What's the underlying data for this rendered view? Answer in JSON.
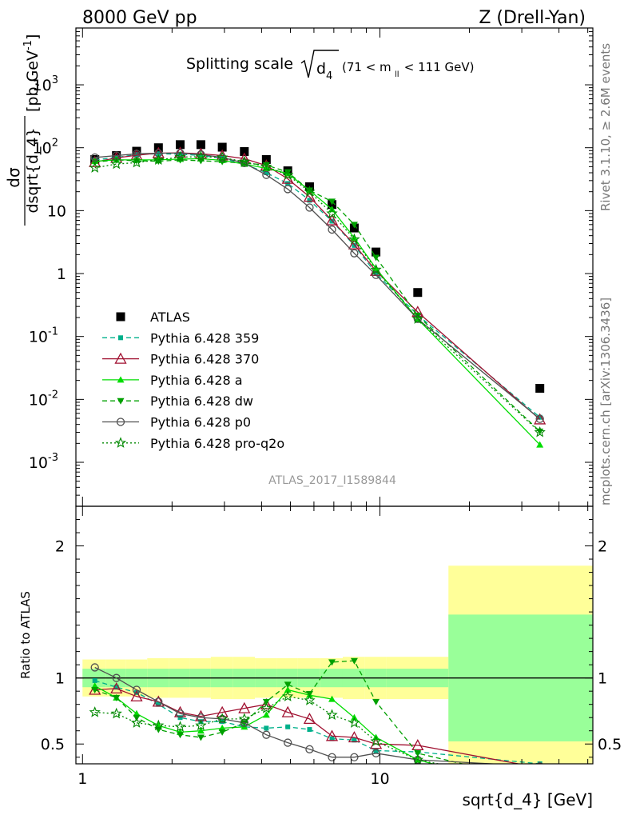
{
  "header": {
    "energy_label": "8000 GeV pp",
    "process_label": "Z (Drell-Yan)"
  },
  "side_labels": {
    "rivet": "Rivet 3.1.10, ≥ 2.6M events",
    "mcplots": "mcplots.cern.ch [arXiv:1306.3436]"
  },
  "analysis_id": "ATLAS_2017_I1589844",
  "chart_data": [
    {
      "type": "scatter",
      "panel": "main",
      "title_parts": {
        "prefix": "Splitting scale",
        "symbol": "d",
        "subscript": "4",
        "range_prefix": "(71 < m",
        "range_sub": "ll",
        "range_suffix": " < 111 GeV)"
      },
      "ylabel": "dσ / dsqrt{d_4} [pb,GeV⁻¹]",
      "ylabel_parts": {
        "num": "dσ",
        "den": "dsqrt{d_4}",
        "unit": "[pb,GeV",
        "unit_sup": "-1",
        "unit_end": "]"
      },
      "xscale": "log",
      "yscale": "log",
      "xlim": [
        0.95,
        52
      ],
      "ylim": [
        0.0002,
        8000
      ],
      "y_ticks": [
        {
          "value": 0.001,
          "base": "10",
          "exp": "-3"
        },
        {
          "value": 0.01,
          "base": "10",
          "exp": "-2"
        },
        {
          "value": 0.1,
          "base": "10",
          "exp": "-1"
        },
        {
          "value": 1,
          "base": "1",
          "exp": ""
        },
        {
          "value": 10,
          "base": "10",
          "exp": ""
        },
        {
          "value": 100,
          "base": "10",
          "exp": "2"
        },
        {
          "value": 1000,
          "base": "10",
          "exp": "3"
        }
      ],
      "legend_position": "middle-left",
      "x_bins": [
        [
          1.0,
          1.2
        ],
        [
          1.2,
          1.4
        ],
        [
          1.4,
          1.65
        ],
        [
          1.65,
          1.95
        ],
        [
          1.95,
          2.3
        ],
        [
          2.3,
          2.7
        ],
        [
          2.7,
          3.2
        ],
        [
          3.2,
          3.8
        ],
        [
          3.8,
          4.5
        ],
        [
          4.5,
          5.3
        ],
        [
          5.3,
          6.3
        ],
        [
          6.3,
          7.5
        ],
        [
          7.5,
          8.9
        ],
        [
          8.9,
          10.5
        ],
        [
          10.5,
          17.0
        ],
        [
          17.0,
          52.0
        ]
      ],
      "x": [
        1.1,
        1.3,
        1.52,
        1.8,
        2.13,
        2.5,
        2.95,
        3.5,
        4.15,
        4.9,
        5.8,
        6.9,
        8.2,
        9.7,
        13.4,
        34.5
      ],
      "series": [
        {
          "name": "ATLAS",
          "color": "#000000",
          "marker": "square",
          "line": "none",
          "values": [
            65,
            75,
            88,
            100,
            112,
            112,
            102,
            87,
            65,
            43,
            24,
            12.5,
            5.3,
            2.2,
            0.5,
            0.015
          ]
        },
        {
          "name": "Pythia 6.428 359",
          "color": "#00b08a",
          "marker": "small-square",
          "line": "dashed",
          "values": [
            64,
            70,
            78,
            80,
            79,
            75,
            68,
            55,
            40,
            27,
            14.6,
            6.8,
            2.8,
            1.0,
            0.22,
            0.0052
          ]
        },
        {
          "name": "Pythia 6.428 370",
          "color": "#a01030",
          "marker": "open-triangle",
          "line": "solid",
          "values": [
            59,
            69,
            76,
            82,
            83,
            80,
            75,
            67,
            52,
            32,
            16.6,
            7.0,
            2.9,
            1.1,
            0.245,
            0.0048
          ]
        },
        {
          "name": "Pythia 6.428 a",
          "color": "#00dd00",
          "marker": "triangle",
          "line": "solid",
          "values": [
            61,
            64,
            64,
            64,
            66,
            67,
            63,
            55,
            47,
            39,
            21,
            10.5,
            3.7,
            1.2,
            0.19,
            0.0019
          ]
        },
        {
          "name": "Pythia 6.428 dw",
          "color": "#00a000",
          "marker": "down-triangle",
          "line": "dashed",
          "values": [
            59,
            64,
            62,
            61,
            64,
            62,
            60,
            57,
            53,
            41,
            21,
            14.0,
            6.0,
            1.8,
            0.215,
            0.0031
          ]
        },
        {
          "name": "Pythia 6.428 p0",
          "color": "#505050",
          "marker": "open-circle",
          "line": "solid",
          "values": [
            70,
            75,
            80,
            82,
            82,
            78,
            70,
            57,
            37,
            22,
            11.2,
            5.0,
            2.1,
            0.95,
            0.19,
            0.0049
          ]
        },
        {
          "name": "Pythia 6.428 pro-q2o",
          "color": "#008800",
          "marker": "star",
          "line": "dotted",
          "values": [
            48,
            55,
            58,
            64,
            71,
            72,
            70,
            60,
            50,
            37,
            20,
            9.0,
            3.5,
            1.15,
            0.19,
            0.003
          ]
        }
      ]
    },
    {
      "type": "line",
      "panel": "ratio",
      "ylabel": "Ratio to ATLAS",
      "xlabel": "sqrt{d_4} [GeV]",
      "xscale": "log",
      "xlim": [
        0.95,
        52
      ],
      "ylim": [
        0.35,
        2.3
      ],
      "y_ticks": [
        0.5,
        1,
        2
      ],
      "x_ticks": [
        1,
        10
      ],
      "reference_line": 1,
      "stat_band_green": [
        0.07,
        0.07,
        0.07,
        0.07,
        0.07,
        0.07,
        0.07,
        0.07,
        0.07,
        0.07,
        0.07,
        0.07,
        0.07,
        0.07,
        0.07,
        0.48
      ],
      "total_band_yellow": [
        0.14,
        0.14,
        0.14,
        0.15,
        0.15,
        0.15,
        0.16,
        0.16,
        0.15,
        0.15,
        0.15,
        0.15,
        0.16,
        0.16,
        0.16,
        0.85
      ],
      "series": [
        {
          "name": "Pythia 6.428 359",
          "values": [
            0.98,
            0.93,
            0.89,
            0.8,
            0.7,
            0.67,
            0.67,
            0.63,
            0.62,
            0.63,
            0.61,
            0.54,
            0.53,
            0.45,
            0.44,
            0.35
          ]
        },
        {
          "name": "Pythia 6.428 370",
          "values": [
            0.91,
            0.92,
            0.86,
            0.82,
            0.74,
            0.71,
            0.74,
            0.77,
            0.8,
            0.74,
            0.69,
            0.56,
            0.55,
            0.5,
            0.49,
            0.32
          ]
        },
        {
          "name": "Pythia 6.428 a",
          "values": [
            0.94,
            0.85,
            0.73,
            0.64,
            0.59,
            0.6,
            0.62,
            0.63,
            0.72,
            0.91,
            0.87,
            0.84,
            0.7,
            0.55,
            0.38,
            0.13
          ]
        },
        {
          "name": "Pythia 6.428 dw",
          "values": [
            0.91,
            0.85,
            0.7,
            0.61,
            0.57,
            0.55,
            0.59,
            0.66,
            0.82,
            0.95,
            0.88,
            1.12,
            1.13,
            0.82,
            0.43,
            0.21
          ]
        },
        {
          "name": "Pythia 6.428 p0",
          "values": [
            1.08,
            1.0,
            0.91,
            0.82,
            0.73,
            0.7,
            0.69,
            0.66,
            0.57,
            0.51,
            0.46,
            0.4,
            0.4,
            0.43,
            0.38,
            0.33
          ]
        },
        {
          "name": "Pythia 6.428 pro-q2o",
          "values": [
            0.74,
            0.73,
            0.66,
            0.64,
            0.63,
            0.64,
            0.69,
            0.69,
            0.77,
            0.86,
            0.83,
            0.72,
            0.66,
            0.52,
            0.38,
            0.2
          ]
        }
      ]
    }
  ]
}
